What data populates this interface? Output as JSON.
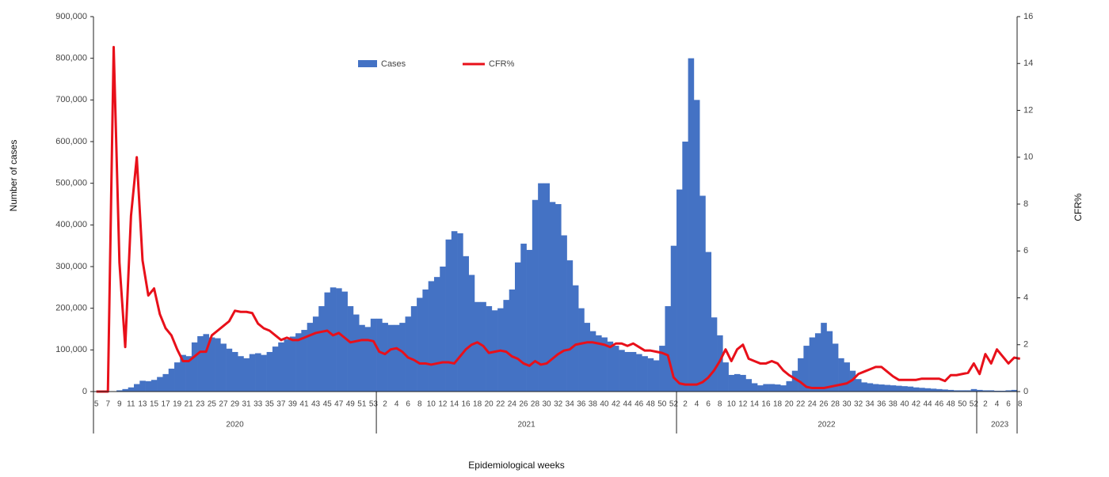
{
  "chart_data": {
    "type": "bar",
    "xlabel": "Epidemiological weeks",
    "ylabel": "Number of cases",
    "y2label": "CFR%",
    "year_groups": [
      {
        "label": "2020",
        "weeks": [
          "5",
          null,
          "7",
          null,
          "9",
          null,
          "11",
          null,
          "13",
          null,
          "15",
          null,
          "17",
          null,
          "19",
          null,
          "21",
          null,
          "23",
          null,
          "25",
          null,
          "27",
          null,
          "29",
          null,
          "31",
          null,
          "33",
          null,
          "35",
          null,
          "37",
          null,
          "39",
          null,
          "41",
          null,
          "43",
          null,
          "45",
          null,
          "47",
          null,
          "49",
          null,
          "51",
          null,
          "53"
        ]
      },
      {
        "label": "2021",
        "weeks": [
          null,
          "2",
          null,
          "4",
          null,
          "6",
          null,
          "8",
          null,
          "10",
          null,
          "12",
          null,
          "14",
          null,
          "16",
          null,
          "18",
          null,
          "20",
          null,
          "22",
          null,
          "24",
          null,
          "26",
          null,
          "28",
          null,
          "30",
          null,
          "32",
          null,
          "34",
          null,
          "36",
          null,
          "38",
          null,
          "40",
          null,
          "42",
          null,
          "44",
          null,
          "46",
          null,
          "48",
          null,
          "50",
          null,
          "52"
        ]
      },
      {
        "label": "2022",
        "weeks": [
          null,
          "2",
          null,
          "4",
          null,
          "6",
          null,
          "8",
          null,
          "10",
          null,
          "12",
          null,
          "14",
          null,
          "16",
          null,
          "18",
          null,
          "20",
          null,
          "22",
          null,
          "24",
          null,
          "26",
          null,
          "28",
          null,
          "30",
          null,
          "32",
          null,
          "34",
          null,
          "36",
          null,
          "38",
          null,
          "40",
          null,
          "42",
          null,
          "44",
          null,
          "46",
          null,
          "48",
          null,
          "50",
          null,
          "52"
        ]
      },
      {
        "label": "2023",
        "weeks": [
          null,
          "2",
          null,
          "4",
          null,
          "6",
          null,
          "8"
        ]
      }
    ],
    "series": [
      {
        "name": "Cases",
        "color": "#4472c4",
        "values": [
          0,
          0,
          0,
          0,
          3000,
          6000,
          10000,
          18000,
          26000,
          25000,
          28000,
          35000,
          42000,
          55000,
          70000,
          88000,
          85000,
          118000,
          133000,
          138000,
          130000,
          128000,
          115000,
          103000,
          95000,
          85000,
          80000,
          90000,
          92000,
          88000,
          95000,
          108000,
          118000,
          125000,
          132000,
          140000,
          148000,
          165000,
          180000,
          205000,
          238000,
          250000,
          248000,
          240000,
          205000,
          185000,
          160000,
          155000,
          175000,
          175000,
          165000,
          160000,
          160000,
          165000,
          180000,
          205000,
          225000,
          245000,
          265000,
          275000,
          300000,
          365000,
          385000,
          380000,
          325000,
          280000,
          215000,
          215000,
          205000,
          195000,
          200000,
          220000,
          245000,
          310000,
          355000,
          340000,
          460000,
          500000,
          500000,
          455000,
          450000,
          375000,
          315000,
          255000,
          200000,
          165000,
          145000,
          135000,
          130000,
          120000,
          110000,
          100000,
          95000,
          95000,
          90000,
          85000,
          80000,
          75000,
          110000,
          205000,
          350000,
          485000,
          600000,
          800000,
          700000,
          470000,
          335000,
          178000,
          135000,
          70000,
          40000,
          42000,
          40000,
          30000,
          20000,
          15000,
          18000,
          18000,
          17000,
          15000,
          25000,
          50000,
          80000,
          110000,
          130000,
          140000,
          165000,
          145000,
          115000,
          80000,
          70000,
          50000,
          30000,
          22000,
          20000,
          18000,
          17000,
          16000,
          15000,
          14000,
          13000,
          12000,
          10000,
          9000,
          8000,
          7000,
          6000,
          5000,
          4000,
          3000,
          3000,
          3000,
          6000,
          4000,
          3000,
          3000,
          2000,
          2000,
          3000,
          4000
        ]
      },
      {
        "name": "CFR%",
        "color": "#e8101a",
        "type": "line",
        "axis": "y2",
        "values": [
          0,
          0,
          0,
          14.7,
          5.5,
          1.9,
          7.5,
          10.0,
          5.6,
          4.1,
          4.4,
          3.3,
          2.7,
          2.4,
          1.8,
          1.3,
          1.3,
          1.5,
          1.7,
          1.7,
          2.4,
          2.6,
          2.8,
          3.0,
          3.45,
          3.4,
          3.4,
          3.35,
          2.9,
          2.7,
          2.6,
          2.4,
          2.2,
          2.3,
          2.2,
          2.2,
          2.3,
          2.4,
          2.5,
          2.55,
          2.6,
          2.4,
          2.5,
          2.3,
          2.1,
          2.15,
          2.2,
          2.2,
          2.15,
          1.7,
          1.6,
          1.8,
          1.85,
          1.7,
          1.45,
          1.35,
          1.2,
          1.2,
          1.15,
          1.2,
          1.25,
          1.25,
          1.2,
          1.5,
          1.8,
          2.0,
          2.1,
          1.95,
          1.65,
          1.7,
          1.75,
          1.7,
          1.5,
          1.4,
          1.2,
          1.1,
          1.3,
          1.15,
          1.2,
          1.4,
          1.6,
          1.75,
          1.8,
          2.0,
          2.05,
          2.1,
          2.1,
          2.05,
          2.0,
          1.9,
          2.05,
          2.05,
          1.95,
          2.05,
          1.9,
          1.75,
          1.75,
          1.7,
          1.65,
          1.55,
          0.6,
          0.35,
          0.3,
          0.3,
          0.3,
          0.4,
          0.6,
          0.9,
          1.3,
          1.8,
          1.3,
          1.8,
          2.0,
          1.4,
          1.3,
          1.2,
          1.2,
          1.3,
          1.2,
          0.9,
          0.7,
          0.55,
          0.4,
          0.2,
          0.15,
          0.15,
          0.15,
          0.2,
          0.25,
          0.3,
          0.35,
          0.5,
          0.75,
          0.85,
          0.95,
          1.05,
          1.05,
          0.85,
          0.65,
          0.5,
          0.5,
          0.5,
          0.5,
          0.55,
          0.55,
          0.55,
          0.55,
          0.45,
          0.7,
          0.7,
          0.75,
          0.8,
          1.2,
          0.75,
          1.6,
          1.2,
          1.8,
          1.5,
          1.2,
          1.45,
          1.4
        ]
      }
    ],
    "ylim": [
      0,
      900000
    ],
    "yticks": [
      0,
      {
        "value": 100000,
        "label": "100,000"
      },
      {
        "value": 200000,
        "label": "200,000"
      },
      {
        "value": 300000,
        "label": "300,000"
      },
      {
        "value": 400000,
        "label": "400,000"
      },
      {
        "value": 500000,
        "label": "500,000"
      },
      {
        "value": 600000,
        "label": "600,000"
      },
      {
        "value": 700000,
        "label": "700,000"
      },
      {
        "value": 800000,
        "label": "800,000"
      },
      {
        "value": 900000,
        "label": "900,000"
      }
    ],
    "y2lim": [
      0,
      16
    ],
    "y2ticks": [
      0,
      2,
      4,
      6,
      8,
      10,
      12,
      14,
      16
    ]
  }
}
